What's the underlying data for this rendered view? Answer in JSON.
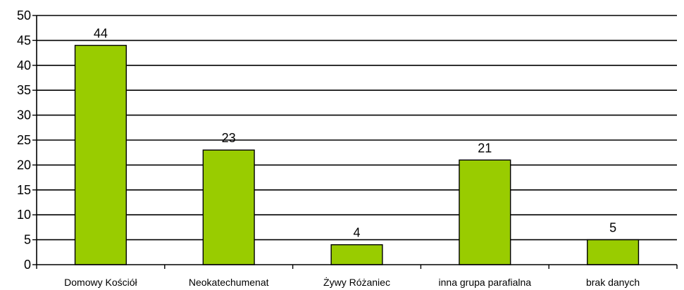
{
  "chart_data": {
    "type": "bar",
    "categories": [
      "Domowy Kościół",
      "Neokatechumenat",
      "Żywy Różaniec",
      "inna grupa parafialna",
      "brak danych"
    ],
    "values": [
      44,
      23,
      4,
      21,
      5
    ],
    "data_labels": [
      "44",
      "23",
      "4",
      "21",
      "5"
    ],
    "title": "",
    "xlabel": "",
    "ylabel": "",
    "ylim": [
      0,
      50
    ],
    "yticks": [
      0,
      5,
      10,
      15,
      20,
      25,
      30,
      35,
      40,
      45,
      50
    ],
    "grid": true,
    "legend": "none",
    "colors": {
      "bar_fill": "#99cc00",
      "bar_stroke": "#000000",
      "grid": "#000000",
      "axis": "#000000"
    }
  }
}
